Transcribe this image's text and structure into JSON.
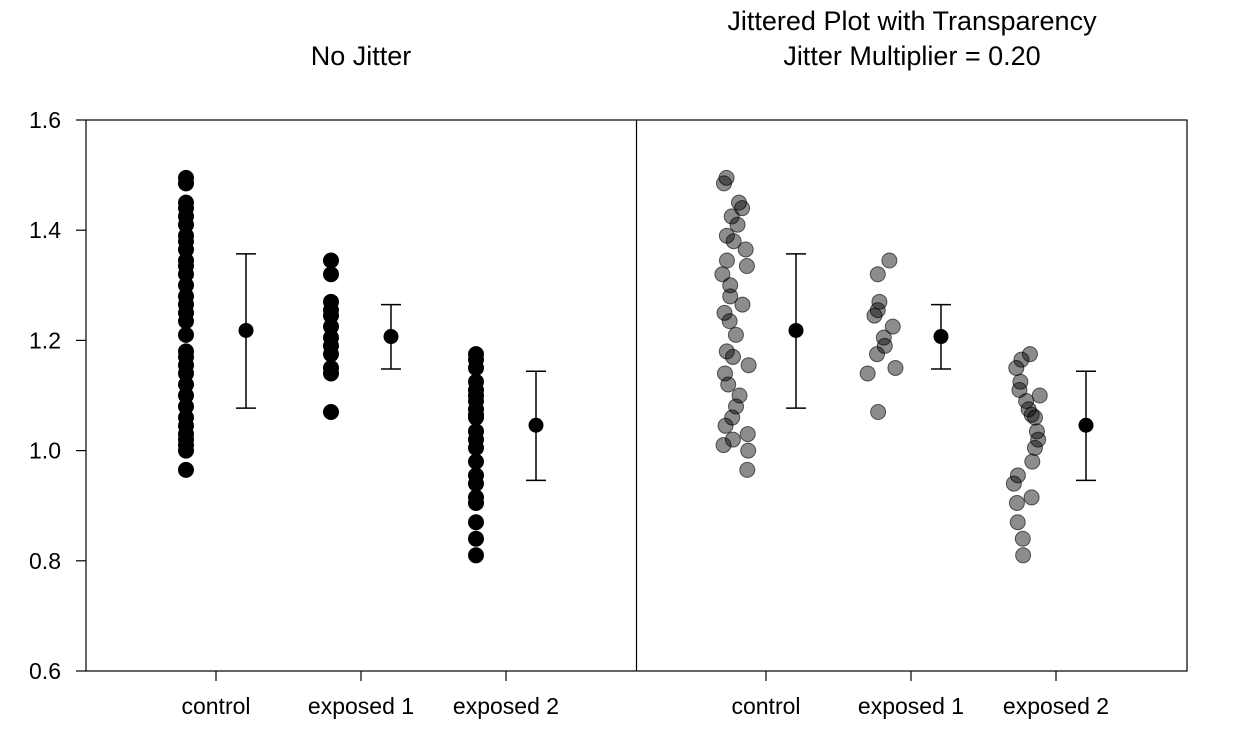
{
  "chart_data": [
    {
      "type": "scatter",
      "title": "No Jitter",
      "categories": [
        "control",
        "exposed 1",
        "exposed 2"
      ],
      "ylim": [
        0.6,
        1.6
      ],
      "yticks": [
        "0.6",
        "0.8",
        "1.0",
        "1.2",
        "1.4",
        "1.6"
      ],
      "jitter": 0,
      "point_opacity": 1,
      "series": [
        {
          "values": [
            [
              0.965,
              1.0,
              1.01,
              1.02,
              1.03,
              1.045,
              1.06,
              1.08,
              1.1,
              1.12,
              1.14,
              1.155,
              1.17,
              1.18,
              1.21,
              1.235,
              1.25,
              1.265,
              1.28,
              1.3,
              1.32,
              1.335,
              1.345,
              1.365,
              1.38,
              1.39,
              1.41,
              1.425,
              1.44,
              1.45,
              1.485,
              1.495
            ],
            [
              1.07,
              1.14,
              1.15,
              1.175,
              1.19,
              1.205,
              1.225,
              1.245,
              1.255,
              1.27,
              1.32,
              1.345
            ],
            [
              0.81,
              0.84,
              0.87,
              0.905,
              0.915,
              0.94,
              0.955,
              0.98,
              1.005,
              1.02,
              1.035,
              1.06,
              1.065,
              1.075,
              1.09,
              1.1,
              1.11,
              1.125,
              1.15,
              1.165,
              1.175
            ]
          ]
        }
      ],
      "summary": [
        {
          "category": "control",
          "mean": 1.218,
          "low": 1.077,
          "high": 1.357
        },
        {
          "category": "exposed 1",
          "mean": 1.207,
          "low": 1.148,
          "high": 1.265
        },
        {
          "category": "exposed 2",
          "mean": 1.046,
          "low": 0.946,
          "high": 1.144
        }
      ]
    },
    {
      "type": "scatter",
      "title": "Jittered Plot with Transparency",
      "subtitle": "Jitter Multiplier = 0.20",
      "categories": [
        "control",
        "exposed 1",
        "exposed 2"
      ],
      "ylim": [
        0.6,
        1.6
      ],
      "jitter": 0.2,
      "point_opacity": 0.45,
      "series": [
        {
          "values": [
            [
              0.965,
              1.0,
              1.01,
              1.02,
              1.03,
              1.045,
              1.06,
              1.08,
              1.1,
              1.12,
              1.14,
              1.155,
              1.17,
              1.18,
              1.21,
              1.235,
              1.25,
              1.265,
              1.28,
              1.3,
              1.32,
              1.335,
              1.345,
              1.365,
              1.38,
              1.39,
              1.41,
              1.425,
              1.44,
              1.45,
              1.485,
              1.495
            ],
            [
              1.07,
              1.14,
              1.15,
              1.175,
              1.19,
              1.205,
              1.225,
              1.245,
              1.255,
              1.27,
              1.32,
              1.345
            ],
            [
              0.81,
              0.84,
              0.87,
              0.905,
              0.915,
              0.94,
              0.955,
              0.98,
              1.005,
              1.02,
              1.035,
              1.06,
              1.065,
              1.075,
              1.09,
              1.1,
              1.11,
              1.125,
              1.15,
              1.165,
              1.175
            ]
          ]
        }
      ],
      "summary": [
        {
          "category": "control",
          "mean": 1.218,
          "low": 1.077,
          "high": 1.357
        },
        {
          "category": "exposed 1",
          "mean": 1.207,
          "low": 1.148,
          "high": 1.265
        },
        {
          "category": "exposed 2",
          "mean": 1.046,
          "low": 0.946,
          "high": 1.144
        }
      ]
    }
  ],
  "colors": {
    "point": "#000000",
    "axis": "#000000"
  }
}
